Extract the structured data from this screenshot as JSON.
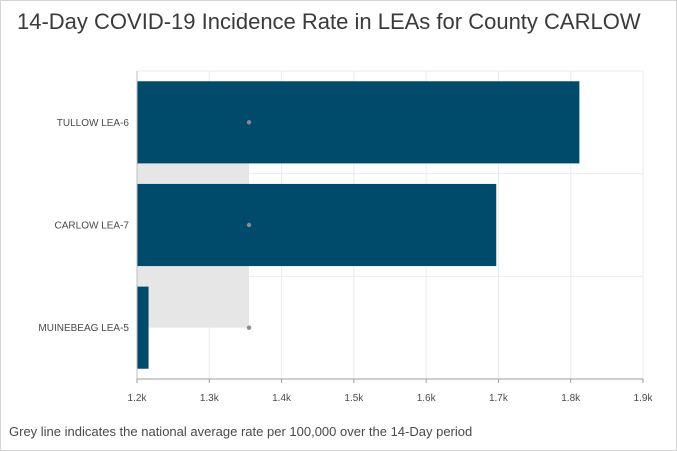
{
  "chart_data": {
    "type": "bar",
    "orientation": "horizontal",
    "title": "14-Day COVID-19 Incidence Rate in LEAs for County CARLOW",
    "categories": [
      "TULLOW LEA-6",
      "CARLOW LEA-7",
      "MUINEBEAG LEA-5"
    ],
    "values": [
      1812,
      1697,
      1216
    ],
    "national_average": 1355,
    "xlim": [
      1200,
      1900
    ],
    "xticks": [
      {
        "value": 1200,
        "label": "1.2k"
      },
      {
        "value": 1300,
        "label": "1.3k"
      },
      {
        "value": 1400,
        "label": "1.4k"
      },
      {
        "value": 1500,
        "label": "1.5k"
      },
      {
        "value": 1600,
        "label": "1.6k"
      },
      {
        "value": 1700,
        "label": "1.7k"
      },
      {
        "value": 1800,
        "label": "1.8k"
      },
      {
        "value": 1900,
        "label": "1.9k"
      }
    ],
    "grid": true,
    "bar_color": "#004b6b",
    "reference_fill_color": "#e6e6e6",
    "reference_dot_color": "#8c8c8c"
  },
  "footnote": "Grey line indicates the national average rate per 100,000 over the 14-Day period"
}
